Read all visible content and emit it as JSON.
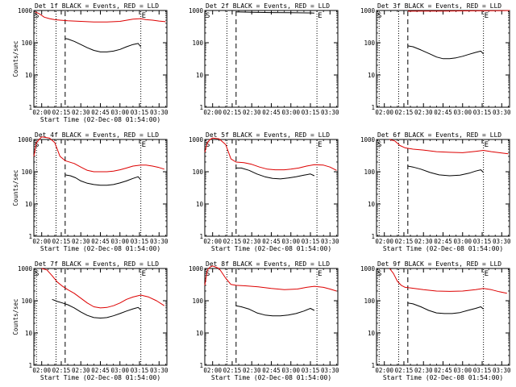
{
  "colors": {
    "black": "#000000",
    "red": "#dd0000",
    "background": "#ffffff"
  },
  "chart_data": [
    {
      "type": "line",
      "title": "Det 1f BLACK = Events, RED = LLD",
      "xlabel": "Start Time (02-Dec-08 01:54:00)",
      "ylabel": "Counts/sec",
      "x_ticks": [
        "02:00",
        "02:15",
        "02:30",
        "02:45",
        "03:00",
        "03:15",
        "03:30"
      ],
      "y_ticks": [
        "1",
        "10",
        "100",
        "1000"
      ],
      "y_scale": "log",
      "ylim": [
        1,
        1000
      ],
      "xlim": [
        "01:54",
        "03:36"
      ],
      "markers": {
        "S": "01:54",
        "E": "03:16",
        "dotted": [
          "01:56",
          "02:11",
          "03:16"
        ],
        "dashed": [
          "02:18"
        ]
      },
      "series": [
        {
          "name": "RED = LLD",
          "color": "red",
          "x": [
            "01:55",
            "01:58",
            "02:02",
            "02:06",
            "02:10",
            "02:14",
            "02:20",
            "02:30",
            "02:40",
            "02:50",
            "03:00",
            "03:10",
            "03:16",
            "03:20",
            "03:25",
            "03:30",
            "03:35"
          ],
          "values": [
            900,
            800,
            620,
            560,
            520,
            500,
            480,
            460,
            440,
            440,
            460,
            540,
            560,
            520,
            500,
            470,
            450
          ]
        },
        {
          "name": "BLACK = Events",
          "color": "black",
          "x": [
            "02:18",
            "02:20",
            "02:25",
            "02:30",
            "02:35",
            "02:40",
            "02:45",
            "02:50",
            "02:55",
            "03:00",
            "03:05",
            "03:10",
            "03:14",
            "03:16"
          ],
          "values": [
            135,
            130,
            110,
            88,
            70,
            58,
            52,
            52,
            55,
            62,
            75,
            88,
            95,
            75
          ]
        }
      ]
    },
    {
      "type": "line",
      "title": "Det 2f BLACK = Events, RED = LLD",
      "xlabel": "",
      "ylabel": "",
      "x_ticks": [
        "02:00",
        "02:15",
        "02:30",
        "02:45",
        "03:00",
        "03:15",
        "03:30"
      ],
      "y_ticks": [
        "1",
        "10",
        "100",
        "1000"
      ],
      "y_scale": "log",
      "ylim": [
        1,
        1000
      ],
      "xlim": [
        "01:54",
        "03:36"
      ],
      "markers": {
        "S": "01:54",
        "E": "03:20",
        "dotted": [
          "02:11",
          "03:20"
        ],
        "dashed": [
          "02:18"
        ]
      },
      "series": [
        {
          "name": "RED = LLD",
          "color": "red",
          "x": [
            "01:54",
            "01:58",
            "02:02",
            "02:06",
            "02:10",
            "02:14",
            "02:20",
            "02:30",
            "02:45",
            "03:00",
            "03:15",
            "03:25",
            "03:35"
          ],
          "values": [
            2500,
            4000,
            5200,
            4300,
            3000,
            2700,
            2600,
            2500,
            2450,
            2400,
            2400,
            2350,
            2350
          ]
        },
        {
          "name": "BLACK = Events",
          "color": "black",
          "x": [
            "02:18",
            "02:30",
            "02:45",
            "03:00",
            "03:15",
            "03:18"
          ],
          "values": [
            900,
            880,
            860,
            850,
            840,
            830
          ]
        }
      ]
    },
    {
      "type": "line",
      "title": "Det 3f BLACK = Events, RED = LLD",
      "xlabel": "",
      "ylabel": "",
      "x_ticks": [
        "02:00",
        "02:15",
        "02:30",
        "02:45",
        "03:00",
        "03:15",
        "03:30"
      ],
      "y_ticks": [
        "1",
        "10",
        "100",
        "1000"
      ],
      "y_scale": "log",
      "ylim": [
        1,
        1000
      ],
      "xlim": [
        "01:54",
        "03:36"
      ],
      "markers": {
        "S": "01:54",
        "E": "03:16",
        "dotted": [
          "01:56",
          "02:11",
          "03:16"
        ],
        "dashed": [
          "02:18"
        ]
      },
      "series": [
        {
          "name": "RED = LLD",
          "color": "red",
          "x": [
            "02:18",
            "02:30",
            "02:45",
            "03:00",
            "03:15",
            "03:30",
            "03:36"
          ],
          "values": [
            950,
            960,
            960,
            970,
            980,
            990,
            1000
          ]
        },
        {
          "name": "BLACK = Events",
          "color": "black",
          "x": [
            "02:18",
            "02:22",
            "02:28",
            "02:35",
            "02:40",
            "02:45",
            "02:50",
            "02:55",
            "03:00",
            "03:05",
            "03:10",
            "03:14",
            "03:16"
          ],
          "values": [
            80,
            75,
            60,
            45,
            36,
            32,
            32,
            34,
            38,
            44,
            50,
            55,
            45
          ]
        }
      ]
    },
    {
      "type": "line",
      "title": "Det 4f BLACK = Events, RED = LLD",
      "xlabel": "Start Time (02-Dec-08 01:54:00)",
      "ylabel": "Counts/sec",
      "x_ticks": [
        "02:00",
        "02:15",
        "02:30",
        "02:45",
        "03:00",
        "03:15",
        "03:30"
      ],
      "y_ticks": [
        "1",
        "10",
        "100",
        "1000"
      ],
      "y_scale": "log",
      "ylim": [
        1,
        1000
      ],
      "xlim": [
        "01:54",
        "03:36"
      ],
      "markers": {
        "S": "01:54",
        "E": "03:16",
        "dotted": [
          "01:56",
          "02:11",
          "03:16"
        ],
        "dashed": [
          "02:18"
        ]
      },
      "series": [
        {
          "name": "RED = LLD",
          "color": "red",
          "x": [
            "01:54",
            "01:56",
            "01:58",
            "02:00",
            "02:06",
            "02:10",
            "02:14",
            "02:18",
            "02:25",
            "02:30",
            "02:35",
            "02:40",
            "02:45",
            "02:50",
            "02:55",
            "03:00",
            "03:05",
            "03:10",
            "03:16",
            "03:20",
            "03:25",
            "03:30",
            "03:34"
          ],
          "values": [
            300,
            800,
            1000,
            1200,
            1100,
            800,
            300,
            220,
            180,
            140,
            110,
            100,
            100,
            100,
            105,
            115,
            130,
            150,
            160,
            160,
            150,
            135,
            120
          ]
        },
        {
          "name": "BLACK = Events",
          "color": "black",
          "x": [
            "02:18",
            "02:22",
            "02:26",
            "02:30",
            "02:35",
            "02:40",
            "02:45",
            "02:50",
            "02:55",
            "03:00",
            "03:05",
            "03:10",
            "03:14",
            "03:16"
          ],
          "values": [
            80,
            75,
            65,
            52,
            44,
            40,
            38,
            38,
            40,
            45,
            52,
            62,
            70,
            56
          ]
        }
      ]
    },
    {
      "type": "line",
      "title": "Det 5f BLACK = Events, RED = LLD",
      "xlabel": "Start Time (02-Dec-08 01:54:00)",
      "ylabel": "",
      "x_ticks": [
        "02:00",
        "02:15",
        "02:30",
        "02:45",
        "03:00",
        "03:15",
        "03:30"
      ],
      "y_ticks": [
        "1",
        "10",
        "100",
        "1000"
      ],
      "y_scale": "log",
      "ylim": [
        1,
        1000
      ],
      "xlim": [
        "01:54",
        "03:36"
      ],
      "markers": {
        "S": "01:54",
        "E": "03:20",
        "dotted": [
          "02:11",
          "03:20"
        ],
        "dashed": [
          "02:18"
        ]
      },
      "series": [
        {
          "name": "RED = LLD",
          "color": "red",
          "x": [
            "01:54",
            "01:56",
            "01:58",
            "02:00",
            "02:05",
            "02:10",
            "02:14",
            "02:18",
            "02:24",
            "02:30",
            "02:36",
            "02:42",
            "02:48",
            "02:55",
            "03:00",
            "03:06",
            "03:12",
            "03:18",
            "03:25",
            "03:30",
            "03:35"
          ],
          "values": [
            400,
            800,
            1000,
            1100,
            1050,
            700,
            250,
            200,
            190,
            170,
            140,
            120,
            115,
            115,
            120,
            130,
            150,
            165,
            160,
            140,
            110
          ]
        },
        {
          "name": "BLACK = Events",
          "color": "black",
          "x": [
            "02:18",
            "02:22",
            "02:28",
            "02:34",
            "02:40",
            "02:46",
            "02:52",
            "02:58",
            "03:04",
            "03:10",
            "03:15",
            "03:18"
          ],
          "values": [
            130,
            130,
            110,
            85,
            70,
            62,
            60,
            64,
            70,
            78,
            85,
            75
          ]
        }
      ]
    },
    {
      "type": "line",
      "title": "Det 6f BLACK = Events, RED = LLD",
      "xlabel": "Start Time (02-Dec-08 01:54:00)",
      "ylabel": "",
      "x_ticks": [
        "02:00",
        "02:15",
        "02:30",
        "02:45",
        "03:00",
        "03:15",
        "03:30"
      ],
      "y_ticks": [
        "1",
        "10",
        "100",
        "1000"
      ],
      "y_scale": "log",
      "ylim": [
        1,
        1000
      ],
      "xlim": [
        "01:54",
        "03:36"
      ],
      "markers": {
        "S": "01:54",
        "E": "03:16",
        "dotted": [
          "01:56",
          "02:11",
          "03:16"
        ],
        "dashed": [
          "02:18"
        ]
      },
      "series": [
        {
          "name": "RED = LLD",
          "color": "red",
          "x": [
            "02:04",
            "02:08",
            "02:12",
            "02:16",
            "02:22",
            "02:30",
            "02:40",
            "02:50",
            "03:00",
            "03:10",
            "03:16",
            "03:22",
            "03:30",
            "03:35"
          ],
          "values": [
            1000,
            900,
            650,
            550,
            500,
            470,
            420,
            400,
            390,
            430,
            460,
            420,
            380,
            360
          ]
        },
        {
          "name": "BLACK = Events",
          "color": "black",
          "x": [
            "02:18",
            "02:22",
            "02:28",
            "02:35",
            "02:42",
            "02:50",
            "02:58",
            "03:05",
            "03:10",
            "03:14",
            "03:16"
          ],
          "values": [
            150,
            140,
            120,
            95,
            80,
            75,
            78,
            90,
            105,
            115,
            95
          ]
        }
      ]
    },
    {
      "type": "line",
      "title": "Det 7f BLACK = Events, RED = LLD",
      "xlabel": "Start Time (02-Dec-08 01:54:00)",
      "ylabel": "Counts/sec",
      "x_ticks": [
        "02:00",
        "02:15",
        "02:30",
        "02:45",
        "03:00",
        "03:15",
        "03:30"
      ],
      "y_ticks": [
        "1",
        "10",
        "100",
        "1000"
      ],
      "y_scale": "log",
      "ylim": [
        1,
        1000
      ],
      "xlim": [
        "01:54",
        "03:36"
      ],
      "markers": {
        "S": "01:54",
        "E": "03:16",
        "dotted": [
          "01:56",
          "02:11",
          "03:16"
        ],
        "dashed": [
          "02:18"
        ]
      },
      "series": [
        {
          "name": "RED = LLD",
          "color": "red",
          "x": [
            "02:00",
            "02:04",
            "02:08",
            "02:12",
            "02:16",
            "02:20",
            "02:25",
            "02:30",
            "02:35",
            "02:40",
            "02:45",
            "02:50",
            "02:55",
            "03:00",
            "03:05",
            "03:10",
            "03:16",
            "03:22",
            "03:28",
            "03:34"
          ],
          "values": [
            1000,
            900,
            600,
            380,
            280,
            220,
            170,
            120,
            85,
            65,
            60,
            62,
            70,
            85,
            110,
            130,
            150,
            130,
            100,
            70
          ]
        },
        {
          "name": "BLACK = Events",
          "color": "black",
          "x": [
            "02:08",
            "02:12",
            "02:16",
            "02:20",
            "02:25",
            "02:30",
            "02:35",
            "02:40",
            "02:45",
            "02:50",
            "02:55",
            "03:00",
            "03:05",
            "03:10",
            "03:14",
            "03:16"
          ],
          "values": [
            110,
            95,
            85,
            75,
            60,
            45,
            35,
            30,
            29,
            30,
            34,
            40,
            48,
            56,
            62,
            52
          ]
        }
      ]
    },
    {
      "type": "line",
      "title": "Det 8f BLACK = Events, RED = LLD",
      "xlabel": "Start Time (02-Dec-08 01:54:00)",
      "ylabel": "",
      "x_ticks": [
        "02:00",
        "02:15",
        "02:30",
        "02:45",
        "03:00",
        "03:15",
        "03:30"
      ],
      "y_ticks": [
        "1",
        "10",
        "100",
        "1000"
      ],
      "y_scale": "log",
      "ylim": [
        1,
        1000
      ],
      "xlim": [
        "01:54",
        "03:36"
      ],
      "markers": {
        "S": "01:54",
        "E": "03:20",
        "dotted": [
          "02:11",
          "03:20"
        ],
        "dashed": [
          "02:18"
        ]
      },
      "series": [
        {
          "name": "RED = LLD",
          "color": "red",
          "x": [
            "01:54",
            "01:56",
            "01:58",
            "02:00",
            "02:05",
            "02:10",
            "02:14",
            "02:18",
            "02:25",
            "02:35",
            "02:45",
            "02:55",
            "03:05",
            "03:12",
            "03:18",
            "03:25",
            "03:30",
            "03:35"
          ],
          "values": [
            300,
            900,
            1100,
            1200,
            1000,
            500,
            320,
            300,
            290,
            270,
            240,
            220,
            230,
            260,
            280,
            260,
            230,
            200
          ]
        },
        {
          "name": "BLACK = Events",
          "color": "black",
          "x": [
            "02:18",
            "02:22",
            "02:28",
            "02:34",
            "02:40",
            "02:46",
            "02:52",
            "02:58",
            "03:04",
            "03:10",
            "03:15",
            "03:18"
          ],
          "values": [
            70,
            65,
            55,
            42,
            36,
            34,
            34,
            36,
            40,
            48,
            58,
            50
          ]
        }
      ]
    },
    {
      "type": "line",
      "title": "Det 9f BLACK = Events, RED = LLD",
      "xlabel": "Start Time (02-Dec-08 01:54:00)",
      "ylabel": "",
      "x_ticks": [
        "02:00",
        "02:15",
        "02:30",
        "02:45",
        "03:00",
        "03:15",
        "03:30"
      ],
      "y_ticks": [
        "1",
        "10",
        "100",
        "1000"
      ],
      "y_scale": "log",
      "ylim": [
        1,
        1000
      ],
      "xlim": [
        "01:54",
        "03:36"
      ],
      "markers": {
        "S": "01:54",
        "E": "03:16",
        "dotted": [
          "01:56",
          "02:11",
          "03:16"
        ],
        "dashed": [
          "02:18"
        ]
      },
      "series": [
        {
          "name": "RED = LLD",
          "color": "red",
          "x": [
            "02:04",
            "02:07",
            "02:10",
            "02:13",
            "02:16",
            "02:20",
            "02:30",
            "02:40",
            "02:50",
            "03:00",
            "03:10",
            "03:16",
            "03:22",
            "03:28",
            "03:34"
          ],
          "values": [
            1000,
            700,
            400,
            300,
            260,
            250,
            220,
            200,
            195,
            200,
            220,
            240,
            220,
            190,
            170
          ]
        },
        {
          "name": "BLACK = Events",
          "color": "black",
          "x": [
            "02:18",
            "02:22",
            "02:28",
            "02:34",
            "02:40",
            "02:46",
            "02:52",
            "02:58",
            "03:04",
            "03:10",
            "03:14",
            "03:16"
          ],
          "values": [
            85,
            80,
            65,
            50,
            42,
            40,
            40,
            43,
            50,
            58,
            65,
            55
          ]
        }
      ]
    }
  ]
}
